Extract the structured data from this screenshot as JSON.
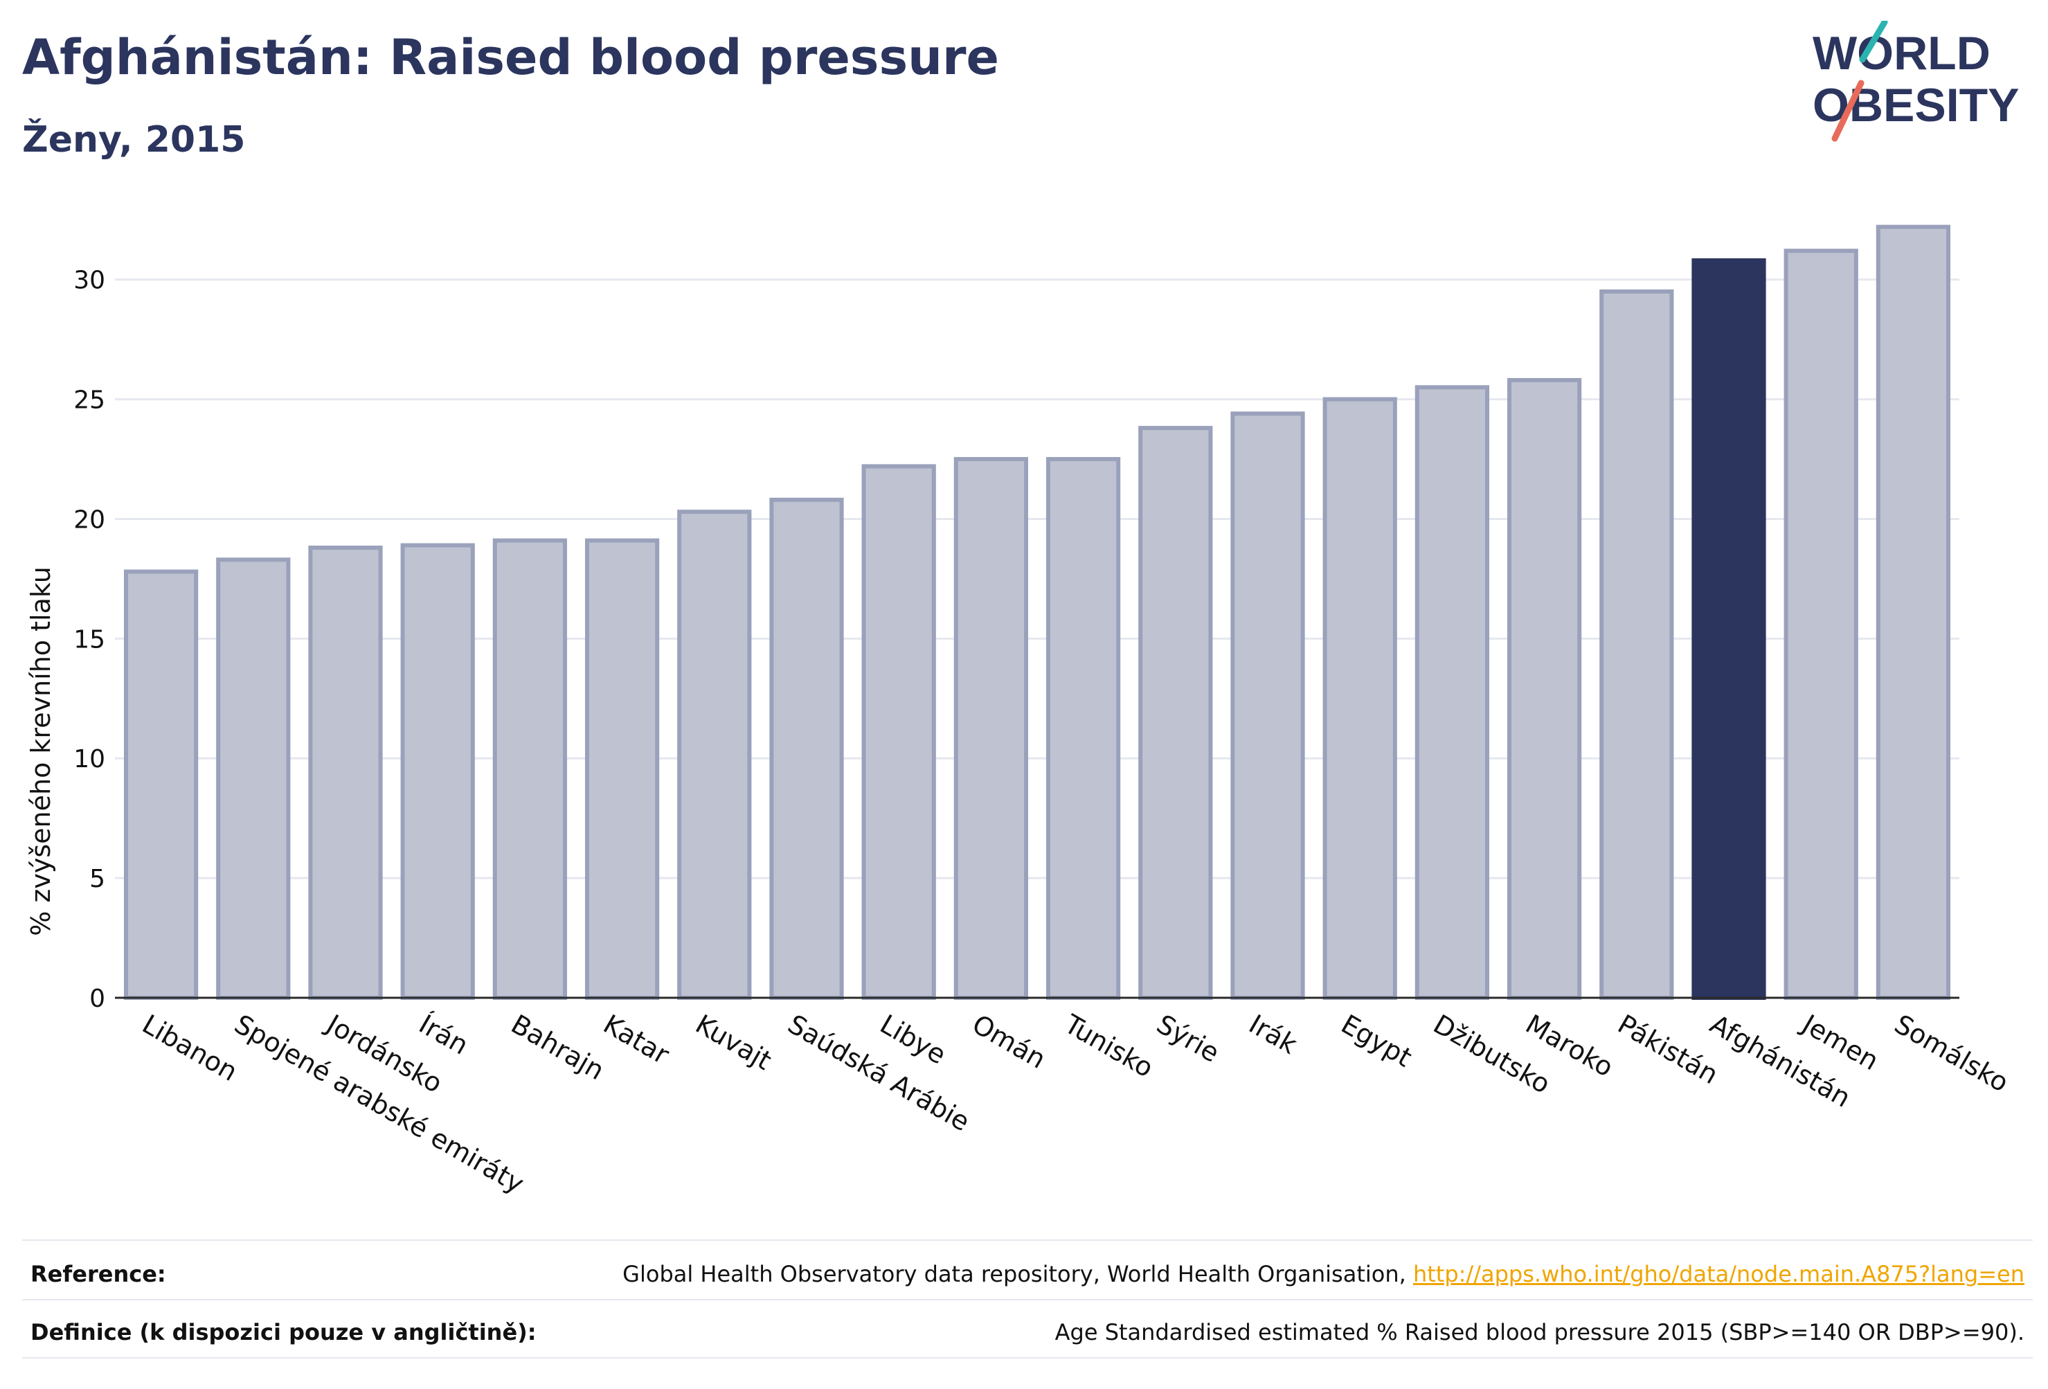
{
  "header": {
    "title": "Afghánistán: Raised blood pressure",
    "subtitle": "Ženy, 2015"
  },
  "logo": {
    "line1": "WORLD",
    "line2": "OBESITY"
  },
  "chart_data": {
    "type": "bar",
    "ylabel": "% zvýšeného krevního tlaku",
    "xlabel": "",
    "ylim": [
      0,
      33
    ],
    "yticks": [
      0,
      5,
      10,
      15,
      20,
      25,
      30
    ],
    "grid": true,
    "categories": [
      "Libanon",
      "Spojené arabské emiráty",
      "Jordánsko",
      "Írán",
      "Bahrajn",
      "Katar",
      "Kuvajt",
      "Saúdská Arábie",
      "Libye",
      "Omán",
      "Tunisko",
      "Sýrie",
      "Irák",
      "Egypt",
      "Džibutsko",
      "Maroko",
      "Pákistán",
      "Afghánistán",
      "Jemen",
      "Somálsko"
    ],
    "values": [
      17.8,
      18.3,
      18.8,
      18.9,
      19.1,
      19.1,
      20.3,
      20.8,
      22.2,
      22.5,
      22.5,
      23.8,
      24.4,
      25.0,
      25.5,
      25.8,
      29.5,
      30.8,
      31.2,
      32.2
    ],
    "highlight": "Afghánistán",
    "colors": {
      "bar": "#bfc3d1",
      "bar_stroke": "#9aa1bb",
      "highlight": "#2b355e",
      "grid": "#e6e8ef",
      "axis": "#2b2b2b"
    }
  },
  "footer": {
    "reference_label": "Reference:",
    "reference_text": "Global Health Observatory data repository, World Health Organisation, ",
    "reference_link": "http://apps.who.int/gho/data/node.main.A875?lang=en",
    "definition_label": "Definice (k dispozici pouze v angličtině):",
    "definition_text": "Age Standardised estimated % Raised blood pressure 2015 (SBP>=140 OR DBP>=90)."
  }
}
